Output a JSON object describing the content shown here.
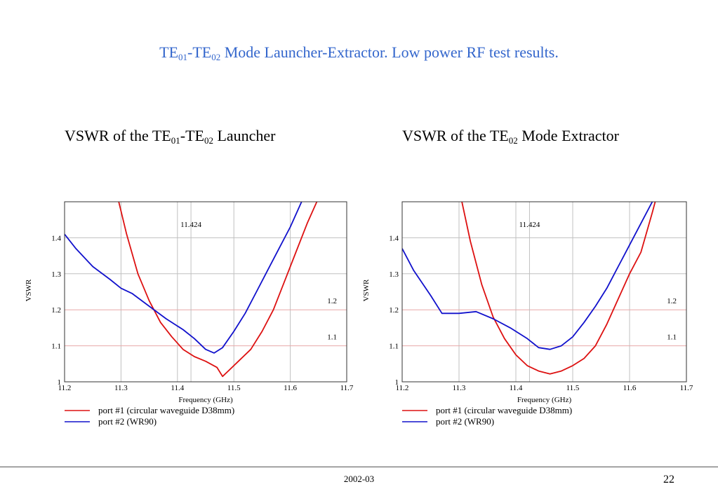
{
  "page": {
    "title": {
      "a": "TE",
      "s1": "01",
      "b": "-TE",
      "s2": "02",
      "c": " Mode Launcher-Extractor. Low power RF test results."
    },
    "footer_date": "2002-03",
    "page_number": "22"
  },
  "colors": {
    "title": "#3366cc",
    "port1": "#dd1111",
    "port2": "#1111cc",
    "grid": "#c0c0c0",
    "ref_line": "#e8a8a8"
  },
  "chart_data": [
    {
      "type": "line",
      "title": {
        "a": "VSWR of the TE",
        "s1": "01",
        "b": "-TE",
        "s2": "02",
        "c": " Launcher"
      },
      "xlabel": "Frequency (GHz)",
      "ylabel": "VSWR",
      "xlim": [
        11.2,
        11.7
      ],
      "ylim": [
        1.0,
        1.5
      ],
      "xticks": [
        "11.2",
        "11.3",
        "11.4",
        "11.5",
        "11.6",
        "11.7"
      ],
      "yticks": [
        "1",
        "1.1",
        "1.2",
        "1.3",
        "1.4"
      ],
      "grid": true,
      "annotations": [
        {
          "text": "11.424",
          "x": 11.424
        },
        {
          "text": "1.2",
          "y": 1.2
        },
        {
          "text": "1.1",
          "y": 1.1
        }
      ],
      "legend_position": "bottom-left",
      "series": [
        {
          "name": "port #1 (circular waveguide D38mm)",
          "x": [
            11.296,
            11.31,
            11.33,
            11.35,
            11.37,
            11.39,
            11.41,
            11.43,
            11.45,
            11.47,
            11.48,
            11.49,
            11.51,
            11.53,
            11.55,
            11.57,
            11.59,
            11.61,
            11.63,
            11.647
          ],
          "y": [
            1.5,
            1.41,
            1.3,
            1.225,
            1.165,
            1.125,
            1.09,
            1.07,
            1.057,
            1.04,
            1.015,
            1.03,
            1.06,
            1.09,
            1.14,
            1.2,
            1.28,
            1.36,
            1.44,
            1.5
          ]
        },
        {
          "name": "port #2 (WR90)",
          "x": [
            11.2,
            11.22,
            11.25,
            11.28,
            11.3,
            11.32,
            11.35,
            11.38,
            11.41,
            11.43,
            11.45,
            11.465,
            11.48,
            11.5,
            11.52,
            11.54,
            11.56,
            11.58,
            11.6,
            11.62
          ],
          "y": [
            1.41,
            1.37,
            1.32,
            1.285,
            1.26,
            1.245,
            1.21,
            1.175,
            1.145,
            1.12,
            1.09,
            1.08,
            1.095,
            1.14,
            1.19,
            1.25,
            1.31,
            1.37,
            1.43,
            1.5
          ]
        }
      ]
    },
    {
      "type": "line",
      "title": {
        "a": "VSWR of the TE",
        "s1": "02",
        "b": " Mode Extractor",
        "s2": "",
        "c": ""
      },
      "xlabel": "Frequency (GHz)",
      "ylabel": "VSWR",
      "xlim": [
        11.2,
        11.7
      ],
      "ylim": [
        1.0,
        1.5
      ],
      "xticks": [
        "11.2",
        "11.3",
        "11.4",
        "11.5",
        "11.6",
        "11.7"
      ],
      "yticks": [
        "1",
        "1.1",
        "1.2",
        "1.3",
        "1.4"
      ],
      "grid": true,
      "annotations": [
        {
          "text": "11.424",
          "x": 11.424
        },
        {
          "text": "1.2",
          "y": 1.2
        },
        {
          "text": "1.1",
          "y": 1.1
        }
      ],
      "legend_position": "bottom-left",
      "series": [
        {
          "name": "port #1 (circular waveguide D38mm)",
          "x": [
            11.305,
            11.32,
            11.34,
            11.36,
            11.38,
            11.4,
            11.42,
            11.44,
            11.46,
            11.48,
            11.5,
            11.52,
            11.54,
            11.56,
            11.58,
            11.6,
            11.62,
            11.64,
            11.645
          ],
          "y": [
            1.5,
            1.39,
            1.27,
            1.18,
            1.12,
            1.075,
            1.045,
            1.03,
            1.022,
            1.03,
            1.045,
            1.065,
            1.1,
            1.16,
            1.23,
            1.3,
            1.36,
            1.47,
            1.5
          ]
        },
        {
          "name": "port #2 (WR90)",
          "x": [
            11.2,
            11.22,
            11.25,
            11.27,
            11.3,
            11.33,
            11.36,
            11.39,
            11.42,
            11.44,
            11.46,
            11.48,
            11.5,
            11.52,
            11.54,
            11.56,
            11.58,
            11.6,
            11.62,
            11.64
          ],
          "y": [
            1.37,
            1.31,
            1.24,
            1.19,
            1.19,
            1.195,
            1.175,
            1.15,
            1.12,
            1.095,
            1.09,
            1.1,
            1.125,
            1.165,
            1.21,
            1.26,
            1.32,
            1.38,
            1.44,
            1.5
          ]
        }
      ]
    }
  ]
}
